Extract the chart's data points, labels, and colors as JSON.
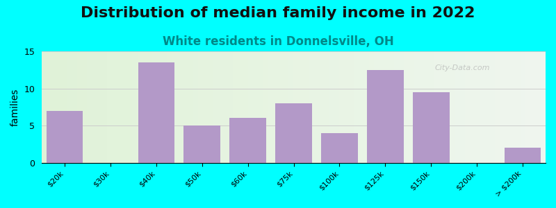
{
  "title": "Distribution of median family income in 2022",
  "subtitle": "White residents in Donnelsville, OH",
  "xlabel": "",
  "ylabel": "families",
  "categories": [
    "$20k",
    "$30k",
    "$40k",
    "$50k",
    "$60k",
    "$75k",
    "$100k",
    "$125k",
    "$150k",
    "$200k",
    "> $200k"
  ],
  "values": [
    7,
    0,
    13.5,
    5,
    6,
    8,
    4,
    12.5,
    9.5,
    0,
    2
  ],
  "bar_color": "#b399c8",
  "background_color": "#00ffff",
  "plot_bg_colors": [
    "#e8f5e0",
    "#ffffff"
  ],
  "ylim": [
    0,
    15
  ],
  "yticks": [
    0,
    5,
    10,
    15
  ],
  "watermark": "City-Data.com",
  "title_fontsize": 16,
  "subtitle_fontsize": 12,
  "subtitle_color": "#008888"
}
